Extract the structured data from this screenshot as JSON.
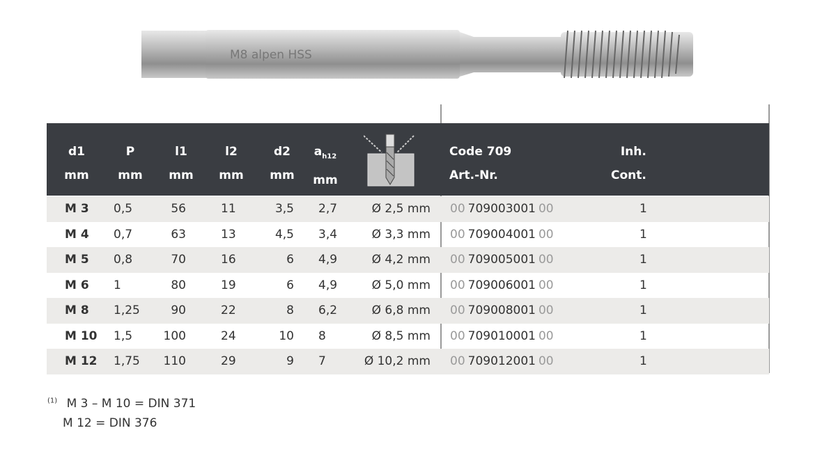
{
  "tool_image": {
    "marking": "M8 alpen HSS"
  },
  "header": {
    "cols": [
      {
        "top": "d1",
        "bottom": "mm"
      },
      {
        "top": "P",
        "bottom": "mm"
      },
      {
        "top": "l1",
        "bottom": "mm"
      },
      {
        "top": "l2",
        "bottom": "mm"
      },
      {
        "top": "d2",
        "bottom": "mm"
      },
      {
        "top": "a",
        "sub": "h12",
        "bottom": "mm"
      }
    ],
    "drill_icon": "core-drill-icon",
    "code_top": "Code 709",
    "code_bottom": "Art.-Nr.",
    "inh_top": "Inh.",
    "inh_bottom": "Cont."
  },
  "rows": [
    {
      "d1": "M 3",
      "p": "0,5",
      "l1": "56",
      "l2": "11",
      "d2": "3,5",
      "a": "2,7",
      "drill": "Ø  2,5 mm",
      "pre": "00",
      "code": "709003001",
      "suf": "00",
      "inh": "1"
    },
    {
      "d1": "M 4",
      "p": "0,7",
      "l1": "63",
      "l2": "13",
      "d2": "4,5",
      "a": "3,4",
      "drill": "Ø  3,3 mm",
      "pre": "00",
      "code": "709004001",
      "suf": "00",
      "inh": "1"
    },
    {
      "d1": "M 5",
      "p": "0,8",
      "l1": "70",
      "l2": "16",
      "d2": "6",
      "a": "4,9",
      "drill": "Ø  4,2 mm",
      "pre": "00",
      "code": "709005001",
      "suf": "00",
      "inh": "1"
    },
    {
      "d1": "M 6",
      "p": "1",
      "l1": "80",
      "l2": "19",
      "d2": "6",
      "a": "4,9",
      "drill": "Ø  5,0 mm",
      "pre": "00",
      "code": "709006001",
      "suf": "00",
      "inh": "1"
    },
    {
      "d1": "M 8",
      "p": "1,25",
      "l1": "90",
      "l2": "22",
      "d2": "8",
      "a": "6,2",
      "drill": "Ø  6,8 mm",
      "pre": "00",
      "code": "709008001",
      "suf": "00",
      "inh": "1"
    },
    {
      "d1": "M 10",
      "p": "1,5",
      "l1": "100",
      "l2": "24",
      "d2": "10",
      "a": "8",
      "drill": "Ø  8,5 mm",
      "pre": "00",
      "code": "709010001",
      "suf": "00",
      "inh": "1"
    },
    {
      "d1": "M 12",
      "p": "1,75",
      "l1": "110",
      "l2": "29",
      "d2": "9",
      "a": "7",
      "drill": "Ø 10,2 mm",
      "pre": "00",
      "code": "709012001",
      "suf": "00",
      "inh": "1"
    }
  ],
  "footnote": {
    "mark": "(1)",
    "line1": "M 3 – M 10 = DIN 371",
    "line2": "M 12 = DIN 376"
  }
}
